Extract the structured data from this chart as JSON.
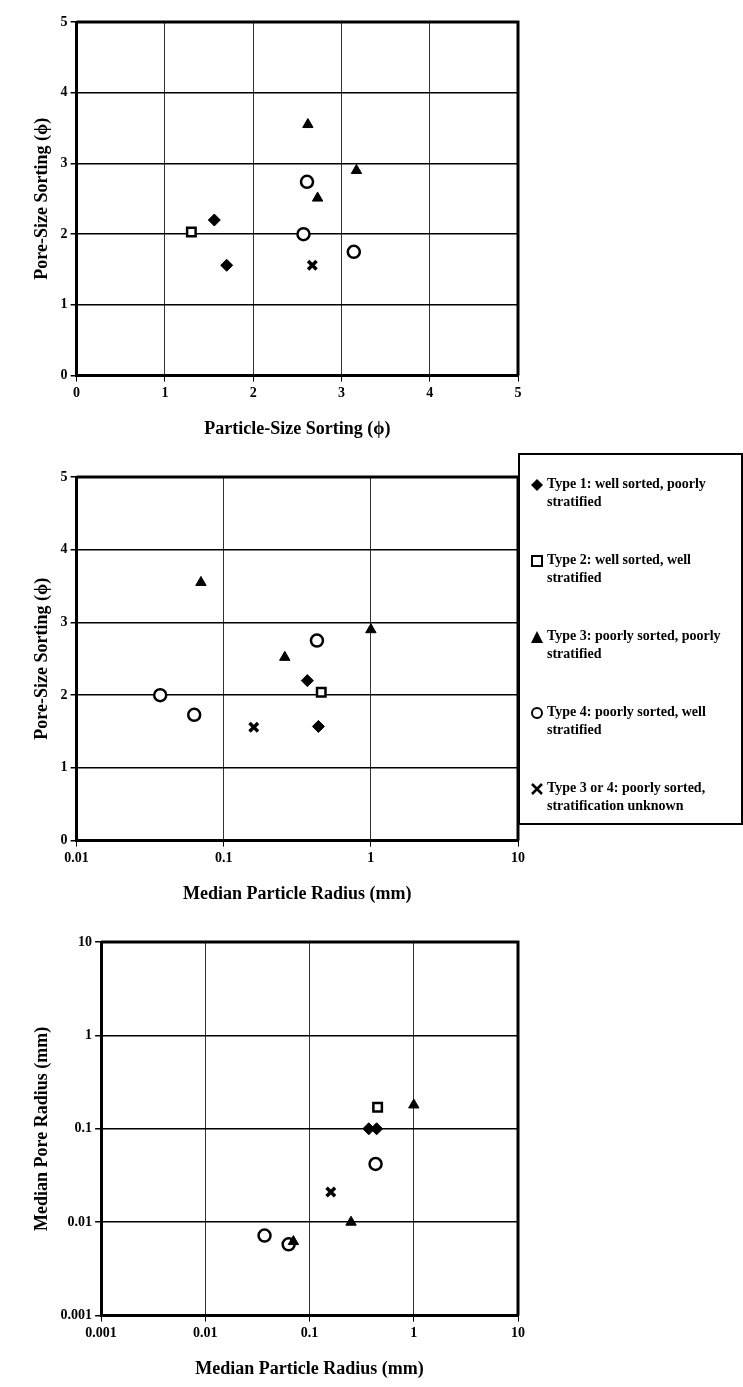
{
  "chart_data": [
    {
      "type": "scatter",
      "xlabel": "Particle-Size Sorting (ϕ)",
      "ylabel": "Pore-Size Sorting (ϕ)",
      "xlim": [
        0,
        5
      ],
      "xticks": [
        0,
        1,
        2,
        3,
        4,
        5
      ],
      "ylim": [
        0,
        5
      ],
      "yticks": [
        0,
        1,
        2,
        3,
        4,
        5
      ],
      "grid": true,
      "series": [
        {
          "color": "#000000",
          "marker": "diamond",
          "x": [
            1.56,
            1.7
          ],
          "values": [
            2.2,
            1.56
          ]
        },
        {
          "color": "#000000",
          "marker": "square",
          "x": [
            1.3
          ],
          "values": [
            2.03
          ]
        },
        {
          "color": "#000000",
          "marker": "triangle",
          "x": [
            2.62,
            3.17,
            2.73
          ],
          "values": [
            3.55,
            2.9,
            2.51
          ]
        },
        {
          "color": "#000000",
          "marker": "circle",
          "x": [
            2.61,
            2.57,
            3.14
          ],
          "values": [
            2.74,
            2.0,
            1.75
          ]
        },
        {
          "color": "#000000",
          "marker": "cross",
          "x": [
            2.67
          ],
          "values": [
            1.56
          ]
        }
      ]
    },
    {
      "type": "scatter",
      "xlabel": "Median Particle Radius (mm)",
      "ylabel": "Pore-Size Sorting (ϕ)",
      "log": "x",
      "xlim": [
        0.01,
        10
      ],
      "xticks": [
        0.01,
        0.1,
        1,
        10
      ],
      "ylim": [
        0,
        5
      ],
      "yticks": [
        0,
        1,
        2,
        3,
        4,
        5
      ],
      "grid": true,
      "legend": "right",
      "series": [
        {
          "name": "Type 1: well sorted, poorly stratified",
          "color": "#000000",
          "marker": "diamond",
          "x": [
            0.37,
            0.44
          ],
          "values": [
            2.2,
            1.57
          ]
        },
        {
          "name": "Type 2: well sorted, well stratified",
          "color": "#000000",
          "marker": "square",
          "x": [
            0.46
          ],
          "values": [
            2.04
          ]
        },
        {
          "name": "Type 3: poorly sorted, poorly stratified",
          "color": "#000000",
          "marker": "triangle",
          "x": [
            0.07,
            1.0,
            0.26
          ],
          "values": [
            3.55,
            2.9,
            2.52
          ]
        },
        {
          "name": "Type 4: poorly sorted, well stratified",
          "color": "#000000",
          "marker": "circle",
          "x": [
            0.43,
            0.037,
            0.063
          ],
          "values": [
            2.75,
            2.0,
            1.73
          ]
        },
        {
          "name": "Type 3 or 4: poorly sorted, stratification unknown",
          "color": "#000000",
          "marker": "cross",
          "x": [
            0.16
          ],
          "values": [
            1.56
          ]
        }
      ]
    },
    {
      "type": "scatter",
      "xlabel": "Median Particle Radius (mm)",
      "ylabel": "Median Pore Radius (mm)",
      "log": "xy",
      "xlim": [
        0.001,
        10
      ],
      "xticks": [
        0.001,
        0.01,
        0.1,
        1,
        10
      ],
      "ylim": [
        0.001,
        10
      ],
      "yticks": [
        0.001,
        0.01,
        0.1,
        1,
        10
      ],
      "grid": true,
      "series": [
        {
          "color": "#000000",
          "marker": "diamond",
          "x": [
            0.37,
            0.44
          ],
          "values": [
            0.1,
            0.1
          ]
        },
        {
          "color": "#000000",
          "marker": "square",
          "x": [
            0.45
          ],
          "values": [
            0.17
          ]
        },
        {
          "color": "#000000",
          "marker": "triangle",
          "x": [
            1.0,
            0.25,
            0.07
          ],
          "values": [
            0.18,
            0.01,
            0.0062
          ]
        },
        {
          "color": "#000000",
          "marker": "circle",
          "x": [
            0.43,
            0.037,
            0.063
          ],
          "values": [
            0.042,
            0.0072,
            0.0058
          ]
        },
        {
          "color": "#000000",
          "marker": "cross",
          "x": [
            0.16
          ],
          "values": [
            0.021
          ]
        }
      ]
    }
  ]
}
